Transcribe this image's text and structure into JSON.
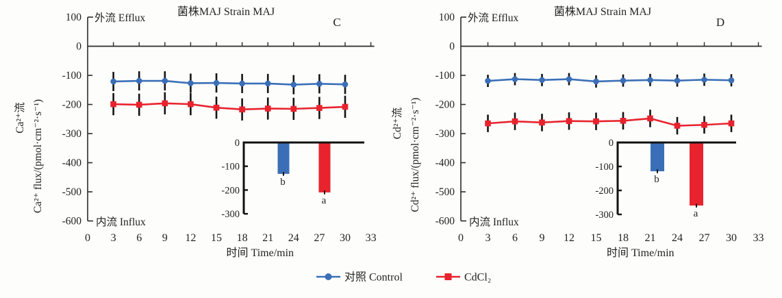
{
  "legend": {
    "items": [
      {
        "label": "对照 Control",
        "color": "#3a6fb7",
        "marker": "circle"
      },
      {
        "label": "CdCl₂",
        "color": "#e8232d",
        "marker": "square"
      }
    ]
  },
  "chart_data": [
    {
      "type": "line",
      "panel_label": "C",
      "title": "菌株MAJ Strain MAJ",
      "efflux_label": "外流 Efflux",
      "influx_label": "内流 Influx",
      "xlabel": "时间 Time/min",
      "ylabel_lines": [
        "Ca²⁺流",
        "Ca²⁺ flux/(pmol·cm⁻²·s⁻¹)"
      ],
      "ylim": [
        -600,
        100
      ],
      "yticks": [
        100,
        0,
        -100,
        -200,
        -300,
        -400,
        -500,
        -600
      ],
      "xticks": [
        0,
        3,
        6,
        9,
        12,
        15,
        18,
        21,
        24,
        27,
        30,
        33
      ],
      "x": [
        3,
        6,
        9,
        12,
        15,
        18,
        21,
        24,
        27,
        30
      ],
      "series": [
        {
          "name": "对照 Control",
          "color": "#3a6fb7",
          "marker": "circle",
          "values": [
            -121,
            -119,
            -119,
            -127,
            -126,
            -128,
            -128,
            -132,
            -129,
            -131
          ],
          "error": 33
        },
        {
          "name": "CdCl₂",
          "color": "#e8232d",
          "marker": "square",
          "values": [
            -199,
            -201,
            -196,
            -199,
            -211,
            -217,
            -214,
            -215,
            -212,
            -208
          ],
          "error": 38
        }
      ],
      "inset": {
        "type": "bar",
        "ylim": [
          -300,
          0
        ],
        "yticks": [
          0,
          -100,
          -200,
          -300
        ],
        "bars": [
          {
            "name": "对照 Control",
            "value": -132,
            "letter": "b",
            "color": "#3a6fb7",
            "error": 8
          },
          {
            "name": "CdCl₂",
            "value": -210,
            "letter": "a",
            "color": "#e8232d",
            "error": 8
          }
        ]
      }
    },
    {
      "type": "line",
      "panel_label": "D",
      "title": "菌株MAJ Strain MAJ",
      "efflux_label": "外流 Efflux",
      "influx_label": "内流 Influx",
      "xlabel": "时间 Time/min",
      "ylabel_lines": [
        "Cd²⁺流",
        "Cd²⁺ flux/(pmol·cm⁻²·s⁻¹)"
      ],
      "ylim": [
        -600,
        100
      ],
      "yticks": [
        100,
        0,
        -100,
        -200,
        -300,
        -400,
        -500,
        -600
      ],
      "xticks": [
        0,
        3,
        6,
        9,
        12,
        15,
        18,
        21,
        24,
        27,
        30,
        33
      ],
      "x": [
        3,
        6,
        9,
        12,
        15,
        18,
        21,
        24,
        27,
        30
      ],
      "series": [
        {
          "name": "对照 Control",
          "color": "#3a6fb7",
          "marker": "circle",
          "values": [
            -119,
            -113,
            -116,
            -113,
            -121,
            -118,
            -116,
            -118,
            -115,
            -117
          ],
          "error": 21
        },
        {
          "name": "CdCl₂",
          "color": "#e8232d",
          "marker": "square",
          "values": [
            -265,
            -258,
            -262,
            -257,
            -258,
            -256,
            -248,
            -273,
            -270,
            -265
          ],
          "error": 30
        }
      ],
      "inset": {
        "type": "bar",
        "ylim": [
          -300,
          0
        ],
        "yticks": [
          0,
          -100,
          -200,
          -300
        ],
        "bars": [
          {
            "name": "对照 Control",
            "value": -120,
            "letter": "b",
            "color": "#3a6fb7",
            "error": 8
          },
          {
            "name": "CdCl₂",
            "value": -263,
            "letter": "a",
            "color": "#e8232d",
            "error": 8
          }
        ]
      }
    }
  ]
}
